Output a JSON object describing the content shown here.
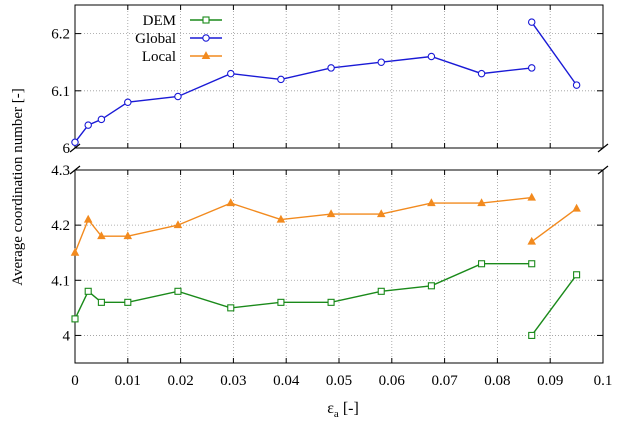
{
  "chart_data": {
    "type": "line",
    "xlabel_main": "ε",
    "xlabel_sub": "a",
    "xlabel_unit": " [-]",
    "ylabel": "Average coordination number [-]",
    "xlim": [
      0,
      0.1
    ],
    "x_ticks": [
      0,
      0.01,
      0.02,
      0.03,
      0.04,
      0.05,
      0.06,
      0.07,
      0.08,
      0.09,
      0.1
    ],
    "x_tick_labels": [
      "0",
      "0.01",
      "0.02",
      "0.03",
      "0.04",
      "0.05",
      "0.06",
      "0.07",
      "0.08",
      "0.09",
      "0.1"
    ],
    "grid": true,
    "grid_style": "dotted",
    "broken_y_axis": true,
    "panels": [
      {
        "position": "upper",
        "ylim": [
          6.0,
          6.25
        ],
        "y_ticks": [
          6.0,
          6.1,
          6.2
        ],
        "y_tick_labels": [
          "6",
          "6.1",
          "6.2"
        ]
      },
      {
        "position": "lower",
        "ylim": [
          3.95,
          4.3
        ],
        "y_ticks": [
          4.0,
          4.1,
          4.2,
          4.3
        ],
        "y_tick_labels": [
          "4",
          "4.1",
          "4.2",
          "4.3"
        ]
      }
    ],
    "legend_position": "top-left",
    "series": [
      {
        "name": "DEM",
        "color": "#1a8a1a",
        "marker": "square",
        "panel": "lower",
        "x": [
          0,
          0.0025,
          0.005,
          0.01,
          0.0195,
          0.0295,
          0.039,
          0.0485,
          0.058,
          0.0675,
          0.077,
          0.0865,
          0.0865,
          0.095
        ],
        "y": [
          4.03,
          4.08,
          4.06,
          4.06,
          4.08,
          4.05,
          4.06,
          4.06,
          4.08,
          4.09,
          4.13,
          4.13,
          4.0,
          4.11
        ],
        "segments": [
          [
            0,
            11
          ],
          [
            12,
            13
          ]
        ]
      },
      {
        "name": "Global",
        "color": "#1a1ad6",
        "marker": "circle",
        "panel": "upper",
        "x": [
          0,
          0.0025,
          0.005,
          0.01,
          0.0195,
          0.0295,
          0.039,
          0.0485,
          0.058,
          0.0675,
          0.077,
          0.0865,
          0.0865,
          0.095
        ],
        "y": [
          6.01,
          6.04,
          6.05,
          6.08,
          6.09,
          6.13,
          6.12,
          6.14,
          6.15,
          6.16,
          6.13,
          6.14,
          6.22,
          6.11
        ],
        "segments": [
          [
            0,
            11
          ],
          [
            12,
            13
          ]
        ]
      },
      {
        "name": "Local",
        "color": "#f28a1e",
        "marker": "triangle",
        "panel": "lower",
        "x": [
          0,
          0.0025,
          0.005,
          0.01,
          0.0195,
          0.0295,
          0.039,
          0.0485,
          0.058,
          0.0675,
          0.077,
          0.0865,
          0.0865,
          0.095
        ],
        "y": [
          4.15,
          4.21,
          4.18,
          4.18,
          4.2,
          4.24,
          4.21,
          4.22,
          4.22,
          4.24,
          4.24,
          4.25,
          4.17,
          4.23
        ],
        "segments": [
          [
            0,
            11
          ],
          [
            12,
            13
          ]
        ]
      }
    ]
  }
}
